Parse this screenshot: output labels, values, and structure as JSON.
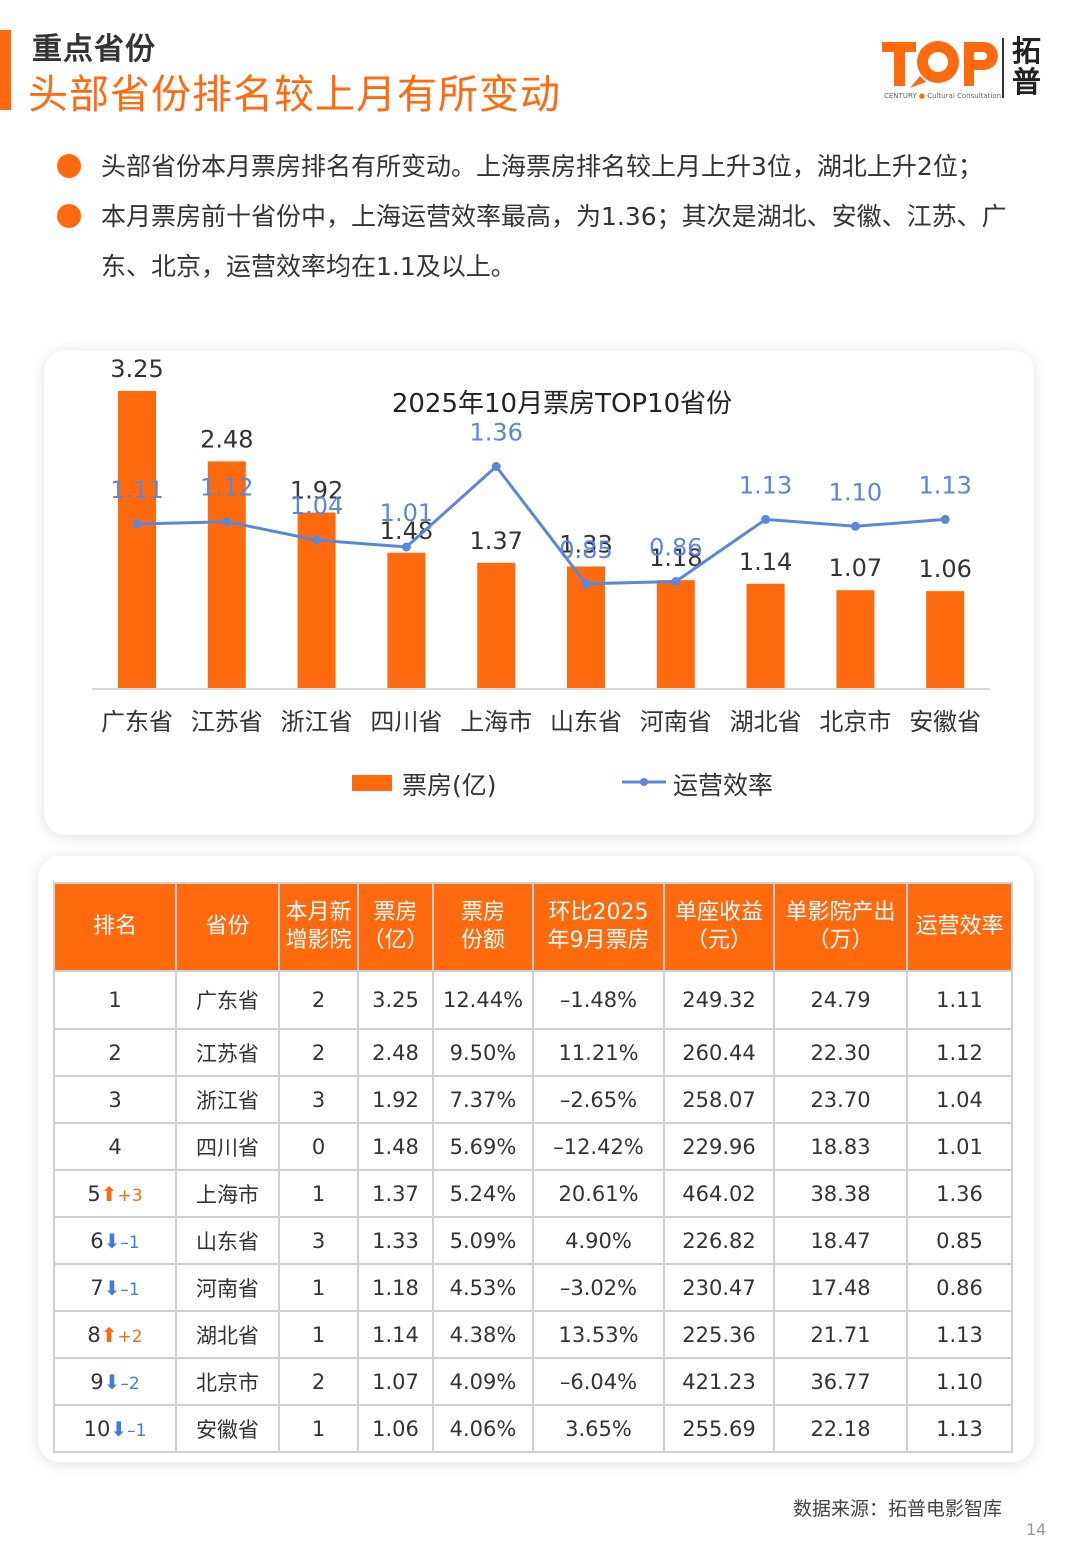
{
  "header": {
    "section": "重点省份",
    "title": "头部省份排名较上月有所变动",
    "logo_cn": "拓普",
    "logo_sub_1": "CENTURY",
    "logo_sub_2": "Cultural Consultation"
  },
  "bullets": [
    "头部省份本月票房排名有所变动。上海票房排名较上月上升3位，湖北上升2位；",
    "本月票房前十省份中，上海运营效率最高，为1.36；其次是湖北、安徽、江苏、广东、北京，运营效率均在1.1及以上。"
  ],
  "chart_data": {
    "type": "bar",
    "title": "2025年10月票房TOP10省份",
    "categories": [
      "广东省",
      "江苏省",
      "浙江省",
      "四川省",
      "上海市",
      "山东省",
      "河南省",
      "湖北省",
      "北京市",
      "安徽省"
    ],
    "series": [
      {
        "name": "票房(亿)",
        "type": "bar",
        "color": "#FF6A0F",
        "values": [
          3.25,
          2.48,
          1.92,
          1.48,
          1.37,
          1.33,
          1.18,
          1.14,
          1.07,
          1.06
        ]
      },
      {
        "name": "运营效率",
        "type": "line",
        "color": "#5B86DA",
        "values": [
          1.11,
          1.12,
          1.04,
          1.01,
          1.36,
          0.85,
          0.86,
          1.13,
          1.1,
          1.13
        ]
      }
    ],
    "value_labels": {
      "bar": [
        "3.25",
        "2.48",
        "1.92",
        "1.48",
        "1.37",
        "1.33",
        "1.18",
        "1.14",
        "1.07",
        "1.06"
      ],
      "line": [
        "1.11",
        "1.12",
        "1.04",
        "1.01",
        "1.36",
        "0.85",
        "0.86",
        "1.13",
        "1.10",
        "1.13"
      ]
    },
    "legend_position": "bottom",
    "grid": false
  },
  "table": {
    "headers": [
      "排名",
      "省份",
      "本月新增影院",
      "票房（亿）",
      "票房份额",
      "环比2025年9月票房",
      "单座收益（元）",
      "单影院产出（万）",
      "运营效率"
    ],
    "header_lines": [
      [
        "排名"
      ],
      [
        "省份"
      ],
      [
        "本月新",
        "增影院"
      ],
      [
        "票房",
        "（亿）"
      ],
      [
        "票房",
        "份额"
      ],
      [
        "环比2025",
        "年9月票房"
      ],
      [
        "单座收益",
        "（元）"
      ],
      [
        "单影院产出",
        "（万）"
      ],
      [
        "运营效率"
      ]
    ],
    "rows": [
      {
        "rank": "1",
        "change": "",
        "dir": "",
        "province": "广东省",
        "new": "2",
        "box": "3.25",
        "share": "12.44%",
        "mom": "–1.48%",
        "seat": "249.32",
        "cinema": "24.79",
        "eff": "1.11"
      },
      {
        "rank": "2",
        "change": "",
        "dir": "",
        "province": "江苏省",
        "new": "2",
        "box": "2.48",
        "share": "9.50%",
        "mom": "11.21%",
        "seat": "260.44",
        "cinema": "22.30",
        "eff": "1.12"
      },
      {
        "rank": "3",
        "change": "",
        "dir": "",
        "province": "浙江省",
        "new": "3",
        "box": "1.92",
        "share": "7.37%",
        "mom": "–2.65%",
        "seat": "258.07",
        "cinema": "23.70",
        "eff": "1.04"
      },
      {
        "rank": "4",
        "change": "",
        "dir": "",
        "province": "四川省",
        "new": "0",
        "box": "1.48",
        "share": "5.69%",
        "mom": "–12.42%",
        "seat": "229.96",
        "cinema": "18.83",
        "eff": "1.01"
      },
      {
        "rank": "5",
        "change": "+3",
        "dir": "up",
        "province": "上海市",
        "new": "1",
        "box": "1.37",
        "share": "5.24%",
        "mom": "20.61%",
        "seat": "464.02",
        "cinema": "38.38",
        "eff": "1.36"
      },
      {
        "rank": "6",
        "change": "–1",
        "dir": "down",
        "province": "山东省",
        "new": "3",
        "box": "1.33",
        "share": "5.09%",
        "mom": "4.90%",
        "seat": "226.82",
        "cinema": "18.47",
        "eff": "0.85"
      },
      {
        "rank": "7",
        "change": "–1",
        "dir": "down",
        "province": "河南省",
        "new": "1",
        "box": "1.18",
        "share": "4.53%",
        "mom": "–3.02%",
        "seat": "230.47",
        "cinema": "17.48",
        "eff": "0.86"
      },
      {
        "rank": "8",
        "change": "+2",
        "dir": "up",
        "province": "湖北省",
        "new": "1",
        "box": "1.14",
        "share": "4.38%",
        "mom": "13.53%",
        "seat": "225.36",
        "cinema": "21.71",
        "eff": "1.13"
      },
      {
        "rank": "9",
        "change": "–2",
        "dir": "down",
        "province": "北京市",
        "new": "2",
        "box": "1.07",
        "share": "4.09%",
        "mom": "–6.04%",
        "seat": "421.23",
        "cinema": "36.77",
        "eff": "1.10"
      },
      {
        "rank": "10",
        "change": "–1",
        "dir": "down",
        "province": "安徽省",
        "new": "1",
        "box": "1.06",
        "share": "4.06%",
        "mom": "3.65%",
        "seat": "255.69",
        "cinema": "22.18",
        "eff": "1.13"
      }
    ]
  },
  "footer": {
    "source": "数据来源：拓普电影智库",
    "page": "14"
  },
  "colors": {
    "accent": "#FF6A0F",
    "line": "#5B86DA",
    "arrow_down": "#3C7FE0"
  },
  "icons": {
    "rank_up": "arrow-up-icon",
    "rank_down": "arrow-down-icon"
  }
}
